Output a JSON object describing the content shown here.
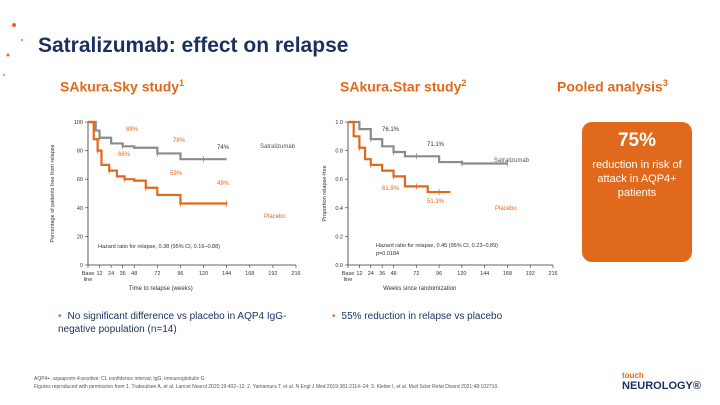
{
  "slide": {
    "title": "Satralizumab: effect on relapse",
    "footnote": "AQP4+, aquaporin-4-positive; CI, confidence interval; IgG, immunoglobulin G",
    "reference": "Figures reproduced with permission from 1. Traboulsee A, et al. Lancet Neurol 2020;19:402–12; 2. Yamamura T, et al. N Engl J Med 2019;381:2114–24; 3. Kleiter I, et al. Mult Scler Relat Disord 2021;48:102710.",
    "logo_top": "touch",
    "logo_bottom": "NEUROLOGY®"
  },
  "studies": {
    "sky_label": "SAkura.Sky study",
    "sky_sup": "1",
    "star_label": "SAkura.Star study",
    "star_sup": "2",
    "pooled_label": "Pooled analysis",
    "pooled_sup": "3"
  },
  "pooled": {
    "value": "75%",
    "text": "reduction in risk of attack in AQP4+ patients"
  },
  "bullets": {
    "sky": "No significant difference vs placebo in AQP4 IgG-negative population (n=14)",
    "star": "55% reduction in relapse vs placebo"
  },
  "colors": {
    "orange": "#e0691c",
    "gray": "#8c8c8c",
    "navy": "#1c2f5e"
  },
  "chart_data": [
    {
      "type": "line",
      "title": "SAkura.Sky study",
      "ylabel": "Percentage of patients free from relapse",
      "xlabel": "Time to relapse (weeks)",
      "ylim": [
        0,
        100
      ],
      "yticks": [
        "100",
        "80",
        "60",
        "40",
        "20",
        "0"
      ],
      "xlim": [
        0,
        216
      ],
      "xticks": [
        0,
        12,
        24,
        36,
        48,
        72,
        96,
        120,
        144,
        168,
        192,
        216
      ],
      "xtick_labels": [
        "Base line",
        "12",
        "24",
        "36",
        "48",
        "72",
        "96",
        "120",
        "144",
        "168",
        "192",
        "216"
      ],
      "series": [
        {
          "name": "Satralizumab",
          "x": [
            0,
            8,
            12,
            24,
            36,
            48,
            72,
            96,
            120,
            144
          ],
          "y": [
            100,
            94,
            89,
            85,
            83,
            82,
            78,
            74,
            74,
            74
          ]
        },
        {
          "name": "Placebo",
          "x": [
            0,
            6,
            10,
            14,
            22,
            30,
            38,
            48,
            60,
            72,
            96,
            120,
            144
          ],
          "y": [
            100,
            88,
            80,
            70,
            66,
            62,
            60,
            59,
            54,
            49,
            43,
            43,
            43
          ]
        }
      ],
      "annotations": [
        "89%",
        "78%",
        "74%",
        "66%",
        "59%",
        "49%"
      ],
      "legend": [
        "Satralizumab",
        "Placebo"
      ],
      "hazard_text": "Hazard ratio for relapse, 0.38 (95% CI, 0.16–0.88)"
    },
    {
      "type": "line",
      "title": "SAkura.Star study",
      "ylabel": "Proportion relapse-free",
      "xlabel": "Weeks since randomization",
      "ylim": [
        0,
        1.0
      ],
      "yticks": [
        "1.0",
        "0.8",
        "0.6",
        "0.4",
        "0.2",
        "0.0"
      ],
      "xlim": [
        0,
        216
      ],
      "xticks": [
        0,
        12,
        24,
        36,
        48,
        72,
        96,
        120,
        144,
        168,
        192,
        216
      ],
      "xtick_labels": [
        "Base line",
        "12",
        "24",
        "36",
        "48",
        "72",
        "96",
        "120",
        "144",
        "168",
        "192",
        "216"
      ],
      "series": [
        {
          "name": "Satralizumab",
          "x": [
            0,
            12,
            24,
            36,
            48,
            60,
            72,
            96,
            120,
            144,
            168
          ],
          "y": [
            1.0,
            0.95,
            0.88,
            0.83,
            0.79,
            0.76,
            0.76,
            0.72,
            0.71,
            0.71,
            0.71
          ]
        },
        {
          "name": "Placebo",
          "x": [
            0,
            6,
            12,
            18,
            24,
            36,
            48,
            60,
            72,
            84,
            96,
            108
          ],
          "y": [
            1.0,
            0.9,
            0.82,
            0.74,
            0.7,
            0.66,
            0.62,
            0.55,
            0.55,
            0.51,
            0.51,
            0.51
          ]
        }
      ],
      "annotations": [
        "76.1%",
        "71.1%",
        "61.9%",
        "51.3%"
      ],
      "legend": [
        "Satralizumab",
        "Placebo"
      ],
      "hazard_text": "Hazard ratio for relapse, 0.45 (95% CI, 0.23–0.89)",
      "p_text": "p=0.0184"
    }
  ]
}
